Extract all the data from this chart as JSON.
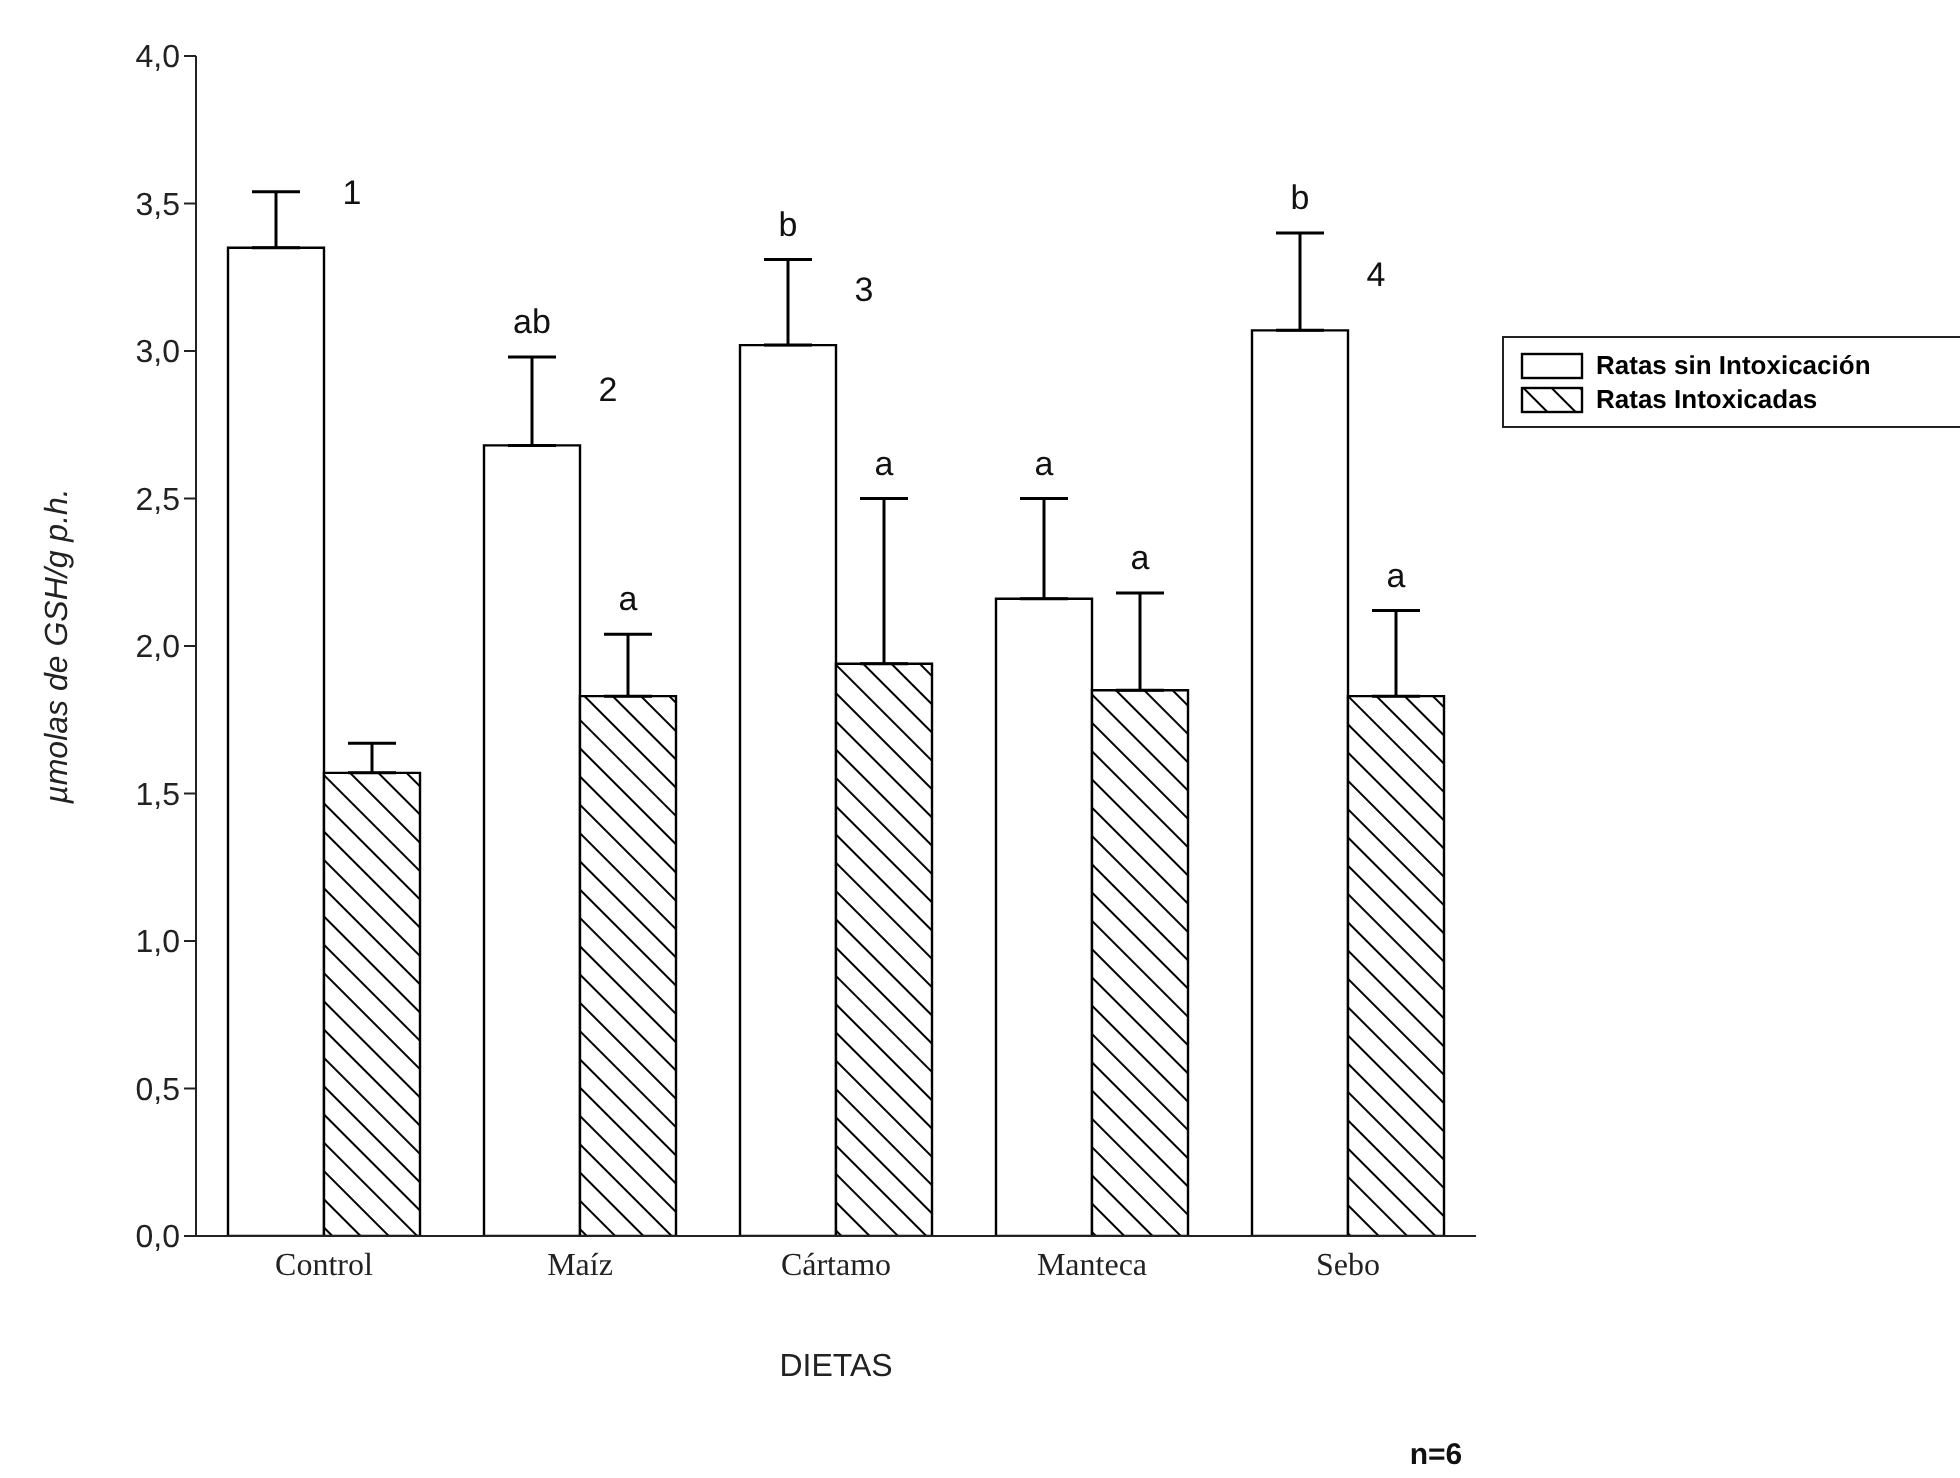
{
  "chart_data": {
    "type": "bar",
    "xlabel": "DIETAS",
    "ylabel": "µmolas de GSH/g  p.h.",
    "categories": [
      "Control",
      "Maíz",
      "Cártamo",
      "Manteca",
      "Sebo"
    ],
    "series": [
      {
        "name": "Ratas sin Intoxicación",
        "color": "#ffffff",
        "values": [
          3.35,
          2.68,
          3.02,
          2.16,
          3.07
        ],
        "errors": [
          [
            3.35,
            3.54
          ],
          [
            2.68,
            2.98
          ],
          [
            3.02,
            3.31
          ],
          [
            2.16,
            2.5
          ],
          [
            3.07,
            3.4
          ]
        ]
      },
      {
        "name": "Ratas Intoxicadas",
        "color": "#000000",
        "values": [
          1.57,
          1.83,
          1.94,
          1.85,
          1.83
        ],
        "errors": [
          [
            1.57,
            1.67
          ],
          [
            1.83,
            2.04
          ],
          [
            1.94,
            2.5
          ],
          [
            1.85,
            2.18
          ],
          [
            1.83,
            2.12
          ]
        ]
      }
    ],
    "ylim": [
      0,
      4
    ],
    "yticks": [
      {
        "value": 0,
        "label": "0,0"
      },
      {
        "value": 0.5,
        "label": "0,5"
      },
      {
        "value": 1,
        "label": "1,0"
      },
      {
        "value": 1.5,
        "label": "1,5"
      },
      {
        "value": 2,
        "label": "2,0"
      },
      {
        "value": 2.5,
        "label": "2,5"
      },
      {
        "value": 3,
        "label": "3,0"
      },
      {
        "value": 3.5,
        "label": "3,5"
      },
      {
        "value": 4,
        "label": "4,0"
      }
    ],
    "grid": false,
    "legend": "right",
    "annotations": [
      {
        "text": "1",
        "x": "Control",
        "y": 3.35
      },
      "ab",
      {
        "text": "2",
        "x": "Maíz",
        "y": 2.68
      },
      {
        "text": "a",
        "x": "Maíz",
        "y": 2.04
      },
      "b",
      {
        "text": "3",
        "x": "Cártamo",
        "y": 3.02
      },
      {
        "text": "a",
        "x": "Cártamo",
        "y": 2.5
      },
      "a",
      {
        "text": "a",
        "x": "Manteca",
        "y": 2.18
      },
      "b",
      {
        "text": "4",
        "x": "Sebo",
        "y": 3.07
      },
      {
        "text": "a",
        "x": "Sebo",
        "y": 2.12
      },
      "n=6"
    ]
  }
}
